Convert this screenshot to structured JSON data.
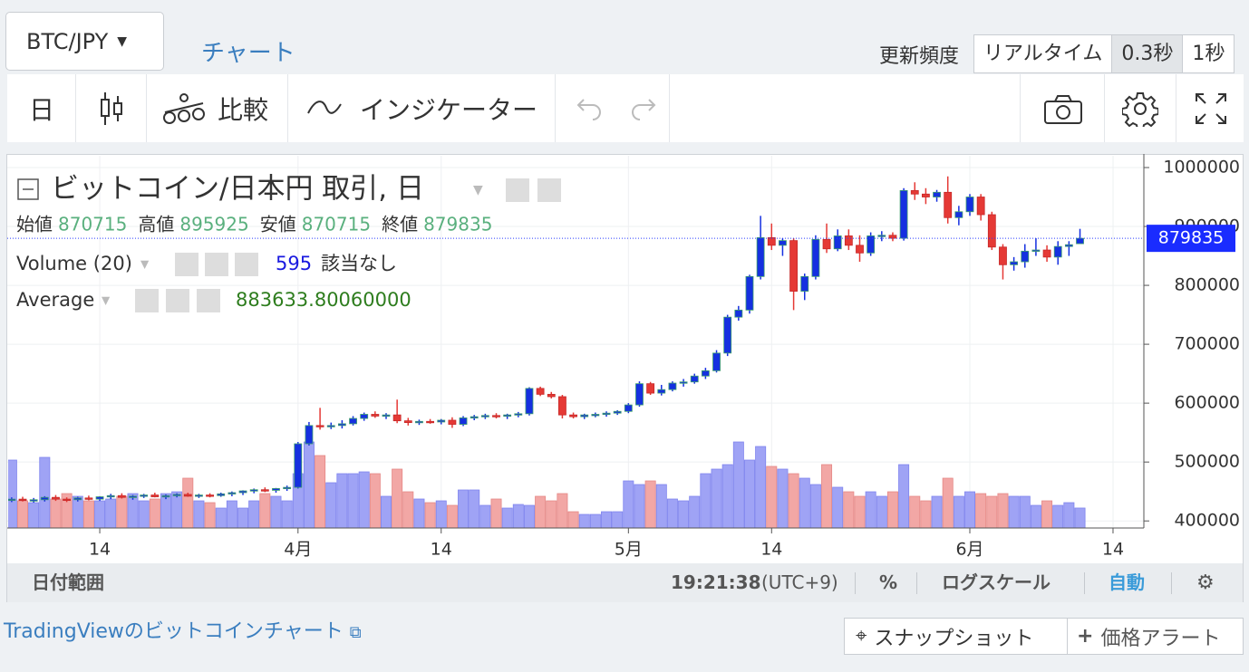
{
  "header": {
    "symbol": "BTC/JPY",
    "tab": "チャート",
    "refresh_label": "更新頻度",
    "refresh_options": [
      "リアルタイム",
      "0.3秒",
      "1秒"
    ],
    "refresh_selected": 1
  },
  "toolbar": {
    "interval": "日",
    "compare": "比較",
    "indicators": "インジケーター"
  },
  "chart_data": {
    "type": "candlestick",
    "title": "ビットコイン/日本円 取引, 日",
    "ohlc_labels": [
      "始値",
      "高値",
      "安値",
      "終値"
    ],
    "volume_label": "Volume (20)",
    "volume_note": "該当なし",
    "average_label": "Average",
    "average_text": "883633.80060000",
    "up_color": "#1530e0",
    "down_color": "#e53935",
    "volume_up_color": "#9fa3f5",
    "volume_down_color": "#f2a7a5",
    "grid": true,
    "last_price_line": true,
    "categories": [
      null,
      null,
      null,
      null,
      null,
      null,
      null,
      null,
      null,
      null,
      null,
      null,
      null,
      null,
      null,
      null,
      null,
      null,
      null,
      null,
      null,
      null,
      null,
      null,
      null,
      null,
      null,
      null,
      null,
      null,
      null,
      null,
      null,
      null,
      null,
      null,
      null,
      null,
      null,
      null,
      null,
      null,
      null,
      null,
      null,
      null,
      null,
      null,
      null,
      null,
      null,
      null,
      null,
      null,
      null,
      null,
      null,
      null,
      null,
      null,
      null,
      null,
      null,
      null,
      null,
      null,
      null,
      null,
      null,
      null,
      null,
      null,
      null,
      null,
      null,
      null,
      null,
      null,
      null,
      null,
      null,
      null,
      null,
      null,
      null,
      null,
      null,
      null,
      null,
      null,
      null,
      null,
      null,
      null,
      null,
      null,
      null,
      null
    ],
    "ohlc": [
      [
        436000,
        440000,
        432000,
        437000
      ],
      [
        437000,
        441000,
        433000,
        435000
      ],
      [
        435000,
        439000,
        431000,
        436000
      ],
      [
        436000,
        442000,
        433000,
        440000
      ],
      [
        440000,
        444000,
        434000,
        437000
      ],
      [
        437000,
        440000,
        432000,
        436000
      ],
      [
        436000,
        441000,
        433000,
        439000
      ],
      [
        439000,
        443000,
        435000,
        437000
      ],
      [
        437000,
        442000,
        434000,
        441000
      ],
      [
        441000,
        446000,
        437000,
        443000
      ],
      [
        443000,
        447000,
        438000,
        440000
      ],
      [
        440000,
        444000,
        436000,
        442000
      ],
      [
        442000,
        446000,
        439000,
        444000
      ],
      [
        444000,
        448000,
        440000,
        441000
      ],
      [
        441000,
        445000,
        437000,
        443000
      ],
      [
        443000,
        447000,
        440000,
        445000
      ],
      [
        445000,
        448000,
        441000,
        442000
      ],
      [
        442000,
        446000,
        439000,
        444000
      ],
      [
        444000,
        447000,
        440000,
        443000
      ],
      [
        443000,
        448000,
        441000,
        446000
      ],
      [
        446000,
        450000,
        442000,
        448000
      ],
      [
        448000,
        452000,
        444000,
        451000
      ],
      [
        451000,
        455000,
        447000,
        453000
      ],
      [
        453000,
        457000,
        449000,
        452000
      ],
      [
        452000,
        456000,
        448000,
        455000
      ],
      [
        455000,
        460000,
        451000,
        457000
      ],
      [
        457000,
        534000,
        455000,
        531000
      ],
      [
        531000,
        568000,
        528000,
        562000
      ],
      [
        562000,
        592000,
        555000,
        561000
      ],
      [
        561000,
        567000,
        556000,
        562000
      ],
      [
        562000,
        571000,
        557000,
        565000
      ],
      [
        565000,
        578000,
        562000,
        574000
      ],
      [
        574000,
        584000,
        570000,
        581000
      ],
      [
        581000,
        586000,
        575000,
        578000
      ],
      [
        578000,
        583000,
        573000,
        580000
      ],
      [
        580000,
        606000,
        566000,
        570000
      ],
      [
        570000,
        575000,
        562000,
        567000
      ],
      [
        567000,
        572000,
        563000,
        569000
      ],
      [
        569000,
        573000,
        565000,
        568000
      ],
      [
        568000,
        573000,
        564000,
        571000
      ],
      [
        571000,
        576000,
        558000,
        564000
      ],
      [
        564000,
        578000,
        561000,
        575000
      ],
      [
        575000,
        580000,
        571000,
        577000
      ],
      [
        577000,
        582000,
        573000,
        579000
      ],
      [
        579000,
        583000,
        574000,
        578000
      ],
      [
        578000,
        582000,
        573000,
        580000
      ],
      [
        580000,
        585000,
        576000,
        582000
      ],
      [
        582000,
        627000,
        579000,
        625000
      ],
      [
        625000,
        628000,
        612000,
        615000
      ],
      [
        615000,
        619000,
        608000,
        611000
      ],
      [
        611000,
        614000,
        574000,
        580000
      ],
      [
        580000,
        584000,
        574000,
        577000
      ],
      [
        577000,
        582000,
        573000,
        580000
      ],
      [
        580000,
        584000,
        576000,
        581000
      ],
      [
        581000,
        586000,
        577000,
        583000
      ],
      [
        583000,
        588000,
        580000,
        586000
      ],
      [
        586000,
        600000,
        583000,
        597000
      ],
      [
        597000,
        637000,
        594000,
        633000
      ],
      [
        633000,
        636000,
        614000,
        617000
      ],
      [
        617000,
        631000,
        613000,
        623000
      ],
      [
        623000,
        637000,
        620000,
        634000
      ],
      [
        634000,
        641000,
        628000,
        636000
      ],
      [
        636000,
        650000,
        633000,
        646000
      ],
      [
        646000,
        660000,
        641000,
        655000
      ],
      [
        655000,
        690000,
        652000,
        685000
      ],
      [
        685000,
        750000,
        680000,
        746000
      ],
      [
        746000,
        765000,
        740000,
        758000
      ],
      [
        758000,
        818000,
        752000,
        815000
      ],
      [
        815000,
        918000,
        810000,
        881000
      ],
      [
        881000,
        905000,
        860000,
        868000
      ],
      [
        868000,
        880000,
        850000,
        876000
      ],
      [
        876000,
        880000,
        758000,
        790000
      ],
      [
        790000,
        820000,
        775000,
        815000
      ],
      [
        815000,
        885000,
        810000,
        878000
      ],
      [
        878000,
        905000,
        855000,
        862000
      ],
      [
        862000,
        895000,
        858000,
        884000
      ],
      [
        884000,
        895000,
        860000,
        868000
      ],
      [
        868000,
        885000,
        840000,
        855000
      ],
      [
        855000,
        890000,
        850000,
        884000
      ],
      [
        884000,
        892000,
        875000,
        885000
      ],
      [
        885000,
        890000,
        875000,
        880000
      ],
      [
        880000,
        965000,
        876000,
        961000
      ],
      [
        961000,
        975000,
        945000,
        955000
      ],
      [
        955000,
        965000,
        938000,
        950000
      ],
      [
        950000,
        962000,
        942000,
        958000
      ],
      [
        958000,
        985000,
        905000,
        915000
      ],
      [
        915000,
        935000,
        902000,
        925000
      ],
      [
        925000,
        955000,
        918000,
        950000
      ],
      [
        950000,
        955000,
        910000,
        920000
      ],
      [
        920000,
        925000,
        860000,
        865000
      ],
      [
        865000,
        870000,
        810000,
        835000
      ],
      [
        835000,
        848000,
        825000,
        840000
      ],
      [
        840000,
        870000,
        830000,
        858000
      ],
      [
        858000,
        880000,
        850000,
        860000
      ],
      [
        860000,
        868000,
        840000,
        848000
      ],
      [
        848000,
        875000,
        835000,
        866000
      ],
      [
        866000,
        875000,
        850000,
        869000
      ],
      [
        870715,
        895925,
        870715,
        879835
      ]
    ],
    "volume": [
      2025,
      810,
      756,
      2106,
      864,
      1026,
      945,
      810,
      810,
      864,
      945,
      1026,
      810,
      864,
      1026,
      1080,
      1485,
      810,
      756,
      594,
      810,
      594,
      810,
      1026,
      945,
      810,
      1620,
      2565,
      2160,
      1350,
      1620,
      1620,
      1674,
      1620,
      945,
      1755,
      1080,
      864,
      756,
      810,
      675,
      1134,
      1134,
      675,
      864,
      594,
      702,
      675,
      945,
      810,
      1026,
      486,
      405,
      405,
      486,
      486,
      1404,
      1296,
      1404,
      1296,
      864,
      810,
      945,
      1620,
      1755,
      1890,
      2565,
      2025,
      2430,
      1836,
      1755,
      1620,
      1485,
      1296,
      1890,
      1215,
      1080,
      945,
      1080,
      945,
      1080,
      1890,
      945,
      810,
      945,
      1485,
      945,
      1080,
      1026,
      945,
      1026,
      945,
      945,
      675,
      810,
      675,
      756,
      595
    ],
    "xlim": [
      -0.4,
      102.8
    ],
    "xticks": [
      {
        "value": 8,
        "label": "14"
      },
      {
        "value": 26,
        "label": "4月"
      },
      {
        "value": 39,
        "label": "14"
      },
      {
        "value": 56,
        "label": "5月"
      },
      {
        "value": 69,
        "label": "14"
      },
      {
        "value": 87,
        "label": "6月"
      },
      {
        "value": 100,
        "label": "14"
      }
    ],
    "ylim": [
      388000,
      1020000
    ],
    "yticks": [
      400000,
      500000,
      600000,
      700000,
      800000,
      900000,
      1000000
    ]
  },
  "footer": {
    "range": "日付範囲",
    "time": "19:21:38",
    "timezone": "(UTC+9)",
    "percent": "%",
    "log": "ログスケール",
    "auto": "自動"
  },
  "links": {
    "chart_link": "TradingViewのビットコインチャート",
    "snapshot": "スナップショット",
    "alert": "価格アラート"
  }
}
